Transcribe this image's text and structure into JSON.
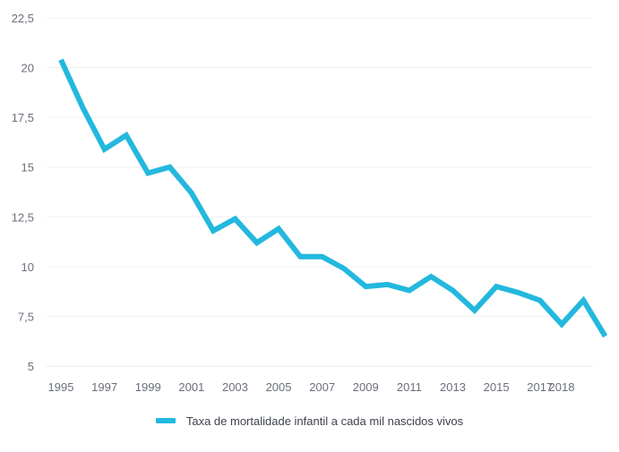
{
  "chart_data": {
    "type": "line",
    "x": [
      1995,
      1996,
      1997,
      1998,
      1999,
      2000,
      2001,
      2002,
      2003,
      2004,
      2005,
      2006,
      2007,
      2008,
      2009,
      2010,
      2011,
      2012,
      2013,
      2014,
      2015,
      2016,
      2017,
      2018,
      2019,
      2020
    ],
    "x_tick_labels": [
      "1995",
      "1997",
      "1999",
      "2001",
      "2003",
      "2005",
      "2007",
      "2009",
      "2011",
      "2013",
      "2015",
      "2017",
      "2018"
    ],
    "y_tick_labels": [
      "22,5",
      "20",
      "17,5",
      "15",
      "12,5",
      "10",
      "7,5",
      "5"
    ],
    "ylim": [
      5,
      22.5
    ],
    "grid": true,
    "legend_position": "bottom-center",
    "series": [
      {
        "name": "Taxa de mortalidade infantil a cada mil nascidos vivos",
        "color": "#23b8de",
        "values": [
          20.4,
          18.0,
          15.9,
          16.6,
          14.7,
          15.0,
          13.7,
          11.8,
          12.4,
          11.2,
          11.9,
          10.5,
          10.5,
          9.9,
          9.0,
          9.1,
          8.8,
          9.5,
          8.8,
          7.8,
          9.0,
          8.7,
          8.3,
          7.1,
          8.3,
          6.5
        ]
      }
    ]
  }
}
